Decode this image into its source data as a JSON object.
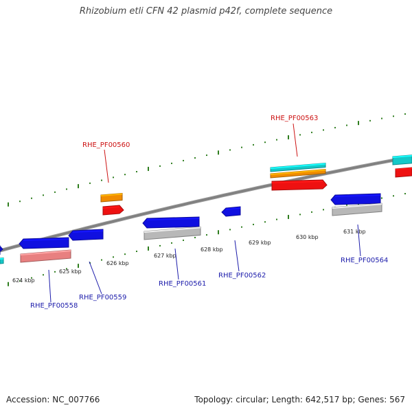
{
  "title": "Rhizobium etli CFN 42 plasmid p42f, complete sequence",
  "accession": "Accession: NC_007766",
  "summary": "Topology: circular; Length: 642,517 bp; Genes: 567",
  "colors": {
    "backbone": "#808080",
    "tick": "#2e7d1e",
    "cds_blue": "#1010e0",
    "cds_red": "#ee1111",
    "cds_orange": "#f08c00",
    "cds_cyan": "#14c8c8",
    "cds_grey": "#b8b8b8",
    "cds_pink": "#e88080",
    "label_red": "#cc1111",
    "label_blue": "#1a1aaa"
  },
  "scale_labels": [
    "624 kbp",
    "625 kbp",
    "626 kbp",
    "627 kbp",
    "628 kbp",
    "629 kbp",
    "630 kbp",
    "631 kbp"
  ],
  "gene_labels": {
    "outer": [
      "RHE_PF00560",
      "RHE_PF00563"
    ],
    "inner": [
      "RHE_PF00558",
      "RHE_PF00559",
      "RHE_PF00561",
      "RHE_PF00562",
      "RHE_PF00564"
    ]
  }
}
